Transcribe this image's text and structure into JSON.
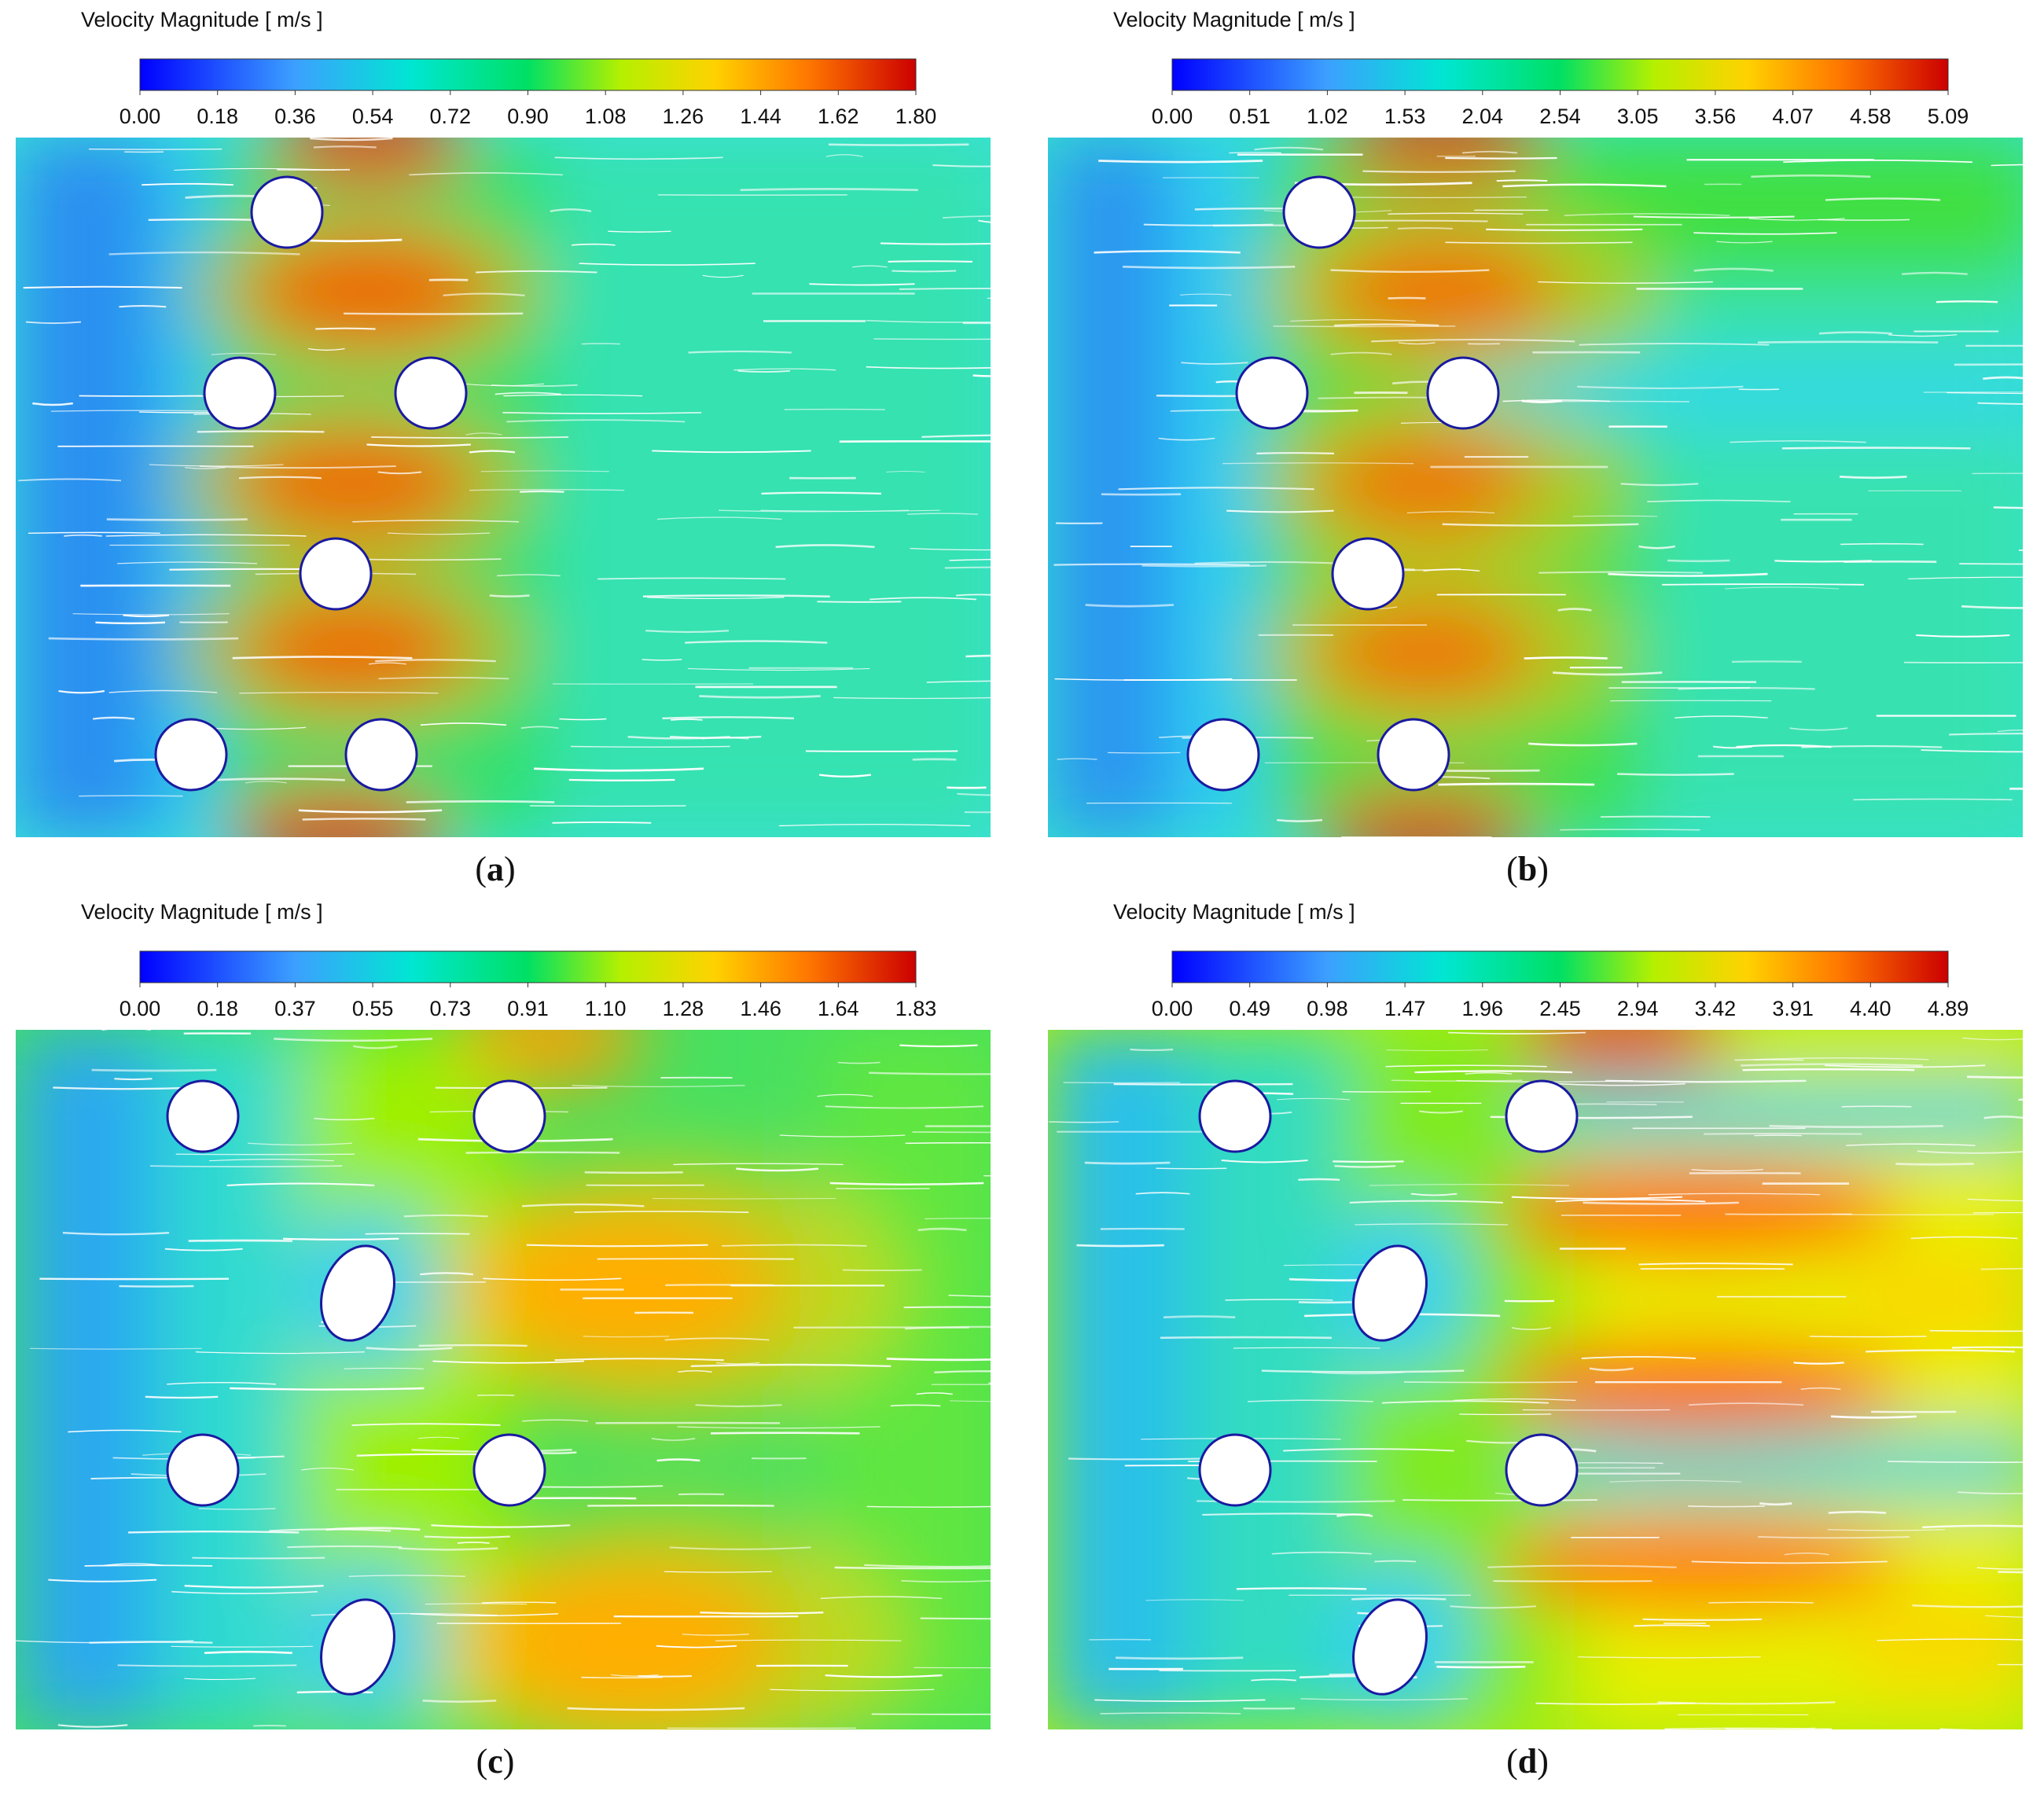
{
  "panels": [
    {
      "id": "a",
      "colorbar_title": "Velocity Magnitude [ m/s ]",
      "colorbar_ticks": [
        "0.00",
        "0.18",
        "0.36",
        "0.54",
        "0.72",
        "0.90",
        "1.08",
        "1.26",
        "1.44",
        "1.62",
        "1.80"
      ],
      "caption_letter": "a",
      "obstacles": [
        {
          "shape": "circle",
          "row": "top"
        },
        {
          "shape": "circle",
          "row": "upper-middle"
        },
        {
          "shape": "circle",
          "row": "upper-middle"
        },
        {
          "shape": "circle",
          "row": "lower-middle"
        },
        {
          "shape": "circle",
          "row": "bottom"
        },
        {
          "shape": "circle",
          "row": "bottom"
        }
      ]
    },
    {
      "id": "b",
      "colorbar_title": "Velocity Magnitude [ m/s ]",
      "colorbar_ticks": [
        "0.00",
        "0.51",
        "1.02",
        "1.53",
        "2.04",
        "2.54",
        "3.05",
        "3.56",
        "4.07",
        "4.58",
        "5.09"
      ],
      "caption_letter": "b",
      "obstacles": [
        {
          "shape": "circle",
          "row": "top"
        },
        {
          "shape": "circle",
          "row": "upper-middle"
        },
        {
          "shape": "circle",
          "row": "upper-middle"
        },
        {
          "shape": "circle",
          "row": "lower-middle"
        },
        {
          "shape": "circle",
          "row": "bottom"
        },
        {
          "shape": "circle",
          "row": "bottom"
        }
      ]
    },
    {
      "id": "c",
      "colorbar_title": "Velocity Magnitude [ m/s ]",
      "colorbar_ticks": [
        "0.00",
        "0.18",
        "0.37",
        "0.55",
        "0.73",
        "0.91",
        "1.10",
        "1.28",
        "1.46",
        "1.64",
        "1.83"
      ],
      "caption_letter": "c",
      "obstacles": [
        {
          "shape": "circle",
          "row": "top"
        },
        {
          "shape": "circle",
          "row": "top"
        },
        {
          "shape": "ellipse",
          "row": "middle"
        },
        {
          "shape": "circle",
          "row": "lower"
        },
        {
          "shape": "circle",
          "row": "lower"
        },
        {
          "shape": "ellipse",
          "row": "bottom"
        }
      ]
    },
    {
      "id": "d",
      "colorbar_title": "Velocity Magnitude [ m/s ]",
      "colorbar_ticks": [
        "0.00",
        "0.49",
        "0.98",
        "1.47",
        "1.96",
        "2.45",
        "2.94",
        "3.42",
        "3.91",
        "4.40",
        "4.89"
      ],
      "caption_letter": "d",
      "obstacles": [
        {
          "shape": "circle",
          "row": "top"
        },
        {
          "shape": "circle",
          "row": "top"
        },
        {
          "shape": "ellipse",
          "row": "middle"
        },
        {
          "shape": "circle",
          "row": "lower"
        },
        {
          "shape": "circle",
          "row": "lower"
        },
        {
          "shape": "ellipse",
          "row": "bottom"
        }
      ]
    }
  ],
  "colormap": [
    "#0000ff",
    "#3f8cff",
    "#00e5e0",
    "#00e060",
    "#c8f000",
    "#ffd000",
    "#ff8000",
    "#d40000"
  ]
}
